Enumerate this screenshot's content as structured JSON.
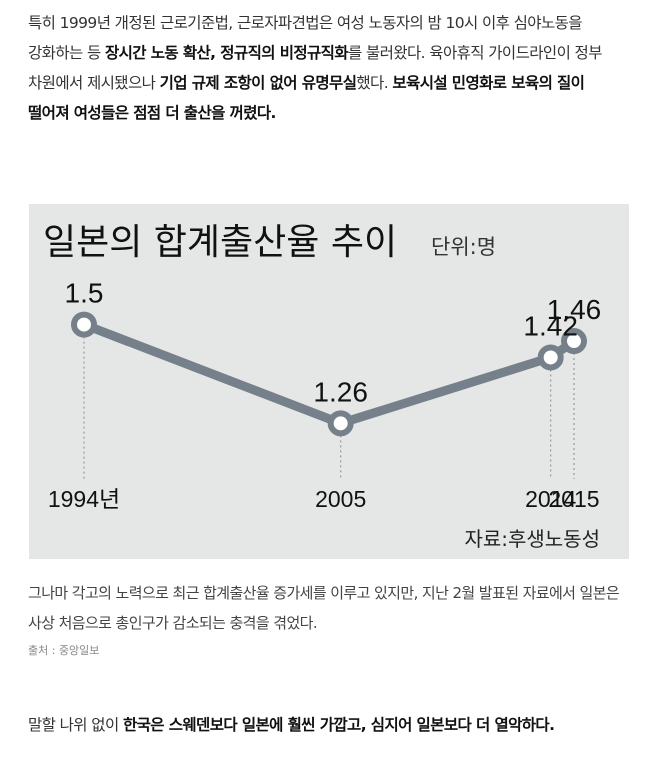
{
  "para1": {
    "t1": "특히 1999년 개정된 근로기준법, 근로자파견법은 여성 노동자의 밤 10시 이후 심야노동을 강화하는 등 ",
    "b1": "장시간 노동 확산, 정규직의 비정규직화",
    "t2": "를 불러왔다. 육아휴직 가이드라인이 정부 차원에서 제시됐으나 ",
    "b2": "기업 규제 조항이 없어 유명무실",
    "t3": "했다. ",
    "b3": "보육시설 민영화로 보육의 질이 떨어져 여성들은 점점 더 출산을 꺼렸다."
  },
  "chart_data": {
    "type": "line",
    "title": "일본의 합계출산율 추이",
    "unit": "단위:명",
    "source": "자료:후생노동성",
    "categories": [
      "1994년",
      "2005",
      "2014",
      "2015"
    ],
    "x": [
      1994,
      2005,
      2014,
      2015
    ],
    "values": [
      1.5,
      1.26,
      1.42,
      1.46
    ],
    "value_labels": [
      "1.5",
      "1.26",
      "1.42",
      "1.46"
    ],
    "xlabel": "",
    "ylabel": "",
    "ylim": [
      1.2,
      1.55
    ],
    "grid": false,
    "colors": {
      "line": "#76808a",
      "marker_fill": "#ffffff",
      "background": "#e5e7e7"
    }
  },
  "para2": "그나마 각고의 노력으로 최근 합계출산율 증가세를 이루고 있지만, 지난 2월 발표된 자료에서 일본은 사상 처음으로 총인구가 감소되는 충격을 겪었다.",
  "caption": "출처 : 중앙일보",
  "para3": {
    "t1": "말할 나위 없이 ",
    "b1": "한국은 스웨덴보다 일본에 훨씬 가깝고, 심지어 일본보다 더 열악하다."
  }
}
